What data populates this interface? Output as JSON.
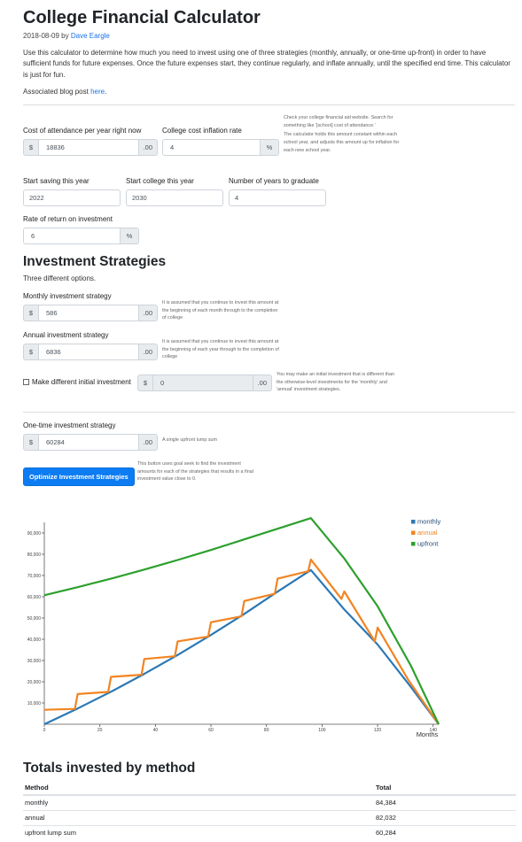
{
  "header": {
    "title": "College Financial Calculator",
    "date": "2018-08-09",
    "by": "by",
    "author": "Dave Eargle",
    "intro": "Use this calculator to determine how much you need to invest using one of three strategies (monthly, annually, or one-time up-front) in order to have sufficient funds for future expenses. Once the future expenses start, they continue regularly, and inflate annually, until the specified end time. This calculator is just for fun.",
    "blog_prefix": "Associated blog post",
    "blog_link": "here",
    "blog_suffix": "."
  },
  "form": {
    "cost": {
      "label": "Cost of attendance per year right now",
      "prefix": "$",
      "value": "18836",
      "suffix": ".00"
    },
    "inflation": {
      "label": "College cost inflation rate",
      "value": "4",
      "suffix": "%"
    },
    "cost_hint_1": "Check your college financial aid website. Search for something like '[school] cost of attendance.'",
    "cost_hint_2": "The calculator holds this amount constant within each school year, and adjusts this amount up for inflation for each new school year.",
    "start_saving": {
      "label": "Start saving this year",
      "value": "2022"
    },
    "start_college": {
      "label": "Start college this year",
      "value": "2030"
    },
    "years_grad": {
      "label": "Number of years to graduate",
      "value": "4"
    },
    "rate": {
      "label": "Rate of return on investment",
      "value": "6",
      "suffix": "%"
    }
  },
  "strategies": {
    "title": "Investment Strategies",
    "subtitle": "Three different options.",
    "monthly": {
      "label": "Monthly investment strategy",
      "prefix": "$",
      "value": "586",
      "suffix": ".00",
      "hint": "It is assumed that you continue to invest this amount at the beginning of each month through to the completion of college"
    },
    "annual": {
      "label": "Annual investment strategy",
      "prefix": "$",
      "value": "6836",
      "suffix": ".00",
      "hint": "It is assumed that you continue to invest this amount at the beginning of each year through to the completion of college"
    },
    "initial": {
      "label": "Make different initial investment",
      "prefix": "$",
      "value": "0",
      "suffix": ".00",
      "hint": "You may make an initial investment that is different than the otherwise-level investments for the 'monthly' and 'annual' investment strategies."
    },
    "onetime": {
      "label": "One-time investment strategy",
      "prefix": "$",
      "value": "60284",
      "suffix": ".00",
      "hint": "A single upfront lump sum"
    },
    "optimize_button": "Optimize Investment Strategies",
    "optimize_hint": "This button uses goal seek to find the investment amounts for each of the strategies that results in a final investment value close to 0."
  },
  "chart_data": {
    "type": "line",
    "xlabel": "Months",
    "ylabel": "",
    "xlim": [
      0,
      142
    ],
    "ylim": [
      0,
      95000
    ],
    "x_ticks": [
      "0",
      "20",
      "40",
      "60",
      "80",
      "100",
      "120",
      "140"
    ],
    "y_ticks": [
      "10,000",
      "20,000",
      "30,000",
      "40,000",
      "50,000",
      "60,000",
      "70,000",
      "80,000",
      "90,000"
    ],
    "legend_position": "top-right",
    "series": [
      {
        "name": "monthly",
        "color": "#2b78b5",
        "points": [
          [
            0,
            0
          ],
          [
            12,
            7400
          ],
          [
            24,
            15300
          ],
          [
            36,
            23700
          ],
          [
            48,
            32600
          ],
          [
            60,
            42000
          ],
          [
            72,
            51900
          ],
          [
            84,
            62400
          ],
          [
            96,
            72600
          ],
          [
            108,
            54000
          ],
          [
            120,
            37500
          ],
          [
            132,
            17500
          ],
          [
            142,
            0
          ]
        ]
      },
      {
        "name": "annual",
        "color": "#f28422",
        "points": [
          [
            0,
            6800
          ],
          [
            11,
            7200
          ],
          [
            12,
            14200
          ],
          [
            23,
            15200
          ],
          [
            24,
            22300
          ],
          [
            35,
            23300
          ],
          [
            36,
            30700
          ],
          [
            47,
            32000
          ],
          [
            48,
            39000
          ],
          [
            59,
            41300
          ],
          [
            60,
            48000
          ],
          [
            71,
            50800
          ],
          [
            72,
            58000
          ],
          [
            83,
            61400
          ],
          [
            84,
            68500
          ],
          [
            95,
            72000
          ],
          [
            96,
            77500
          ],
          [
            107,
            59000
          ],
          [
            108,
            62500
          ],
          [
            119,
            39000
          ],
          [
            120,
            45500
          ],
          [
            131,
            21000
          ],
          [
            142,
            0
          ]
        ]
      },
      {
        "name": "upfront",
        "color": "#2ca02c",
        "points": [
          [
            0,
            60700
          ],
          [
            12,
            64500
          ],
          [
            24,
            68500
          ],
          [
            36,
            72800
          ],
          [
            48,
            77300
          ],
          [
            60,
            82000
          ],
          [
            72,
            87000
          ],
          [
            84,
            92000
          ],
          [
            96,
            97000
          ],
          [
            108,
            78000
          ],
          [
            120,
            55500
          ],
          [
            132,
            27500
          ],
          [
            142,
            0
          ]
        ]
      }
    ]
  },
  "totals": {
    "title": "Totals invested by method",
    "columns": [
      "Method",
      "Total"
    ],
    "rows": [
      {
        "method": "monthly",
        "total": "84,384"
      },
      {
        "method": "annual",
        "total": "82,032"
      },
      {
        "method": "upfront lump sum",
        "total": "60,284"
      }
    ]
  }
}
